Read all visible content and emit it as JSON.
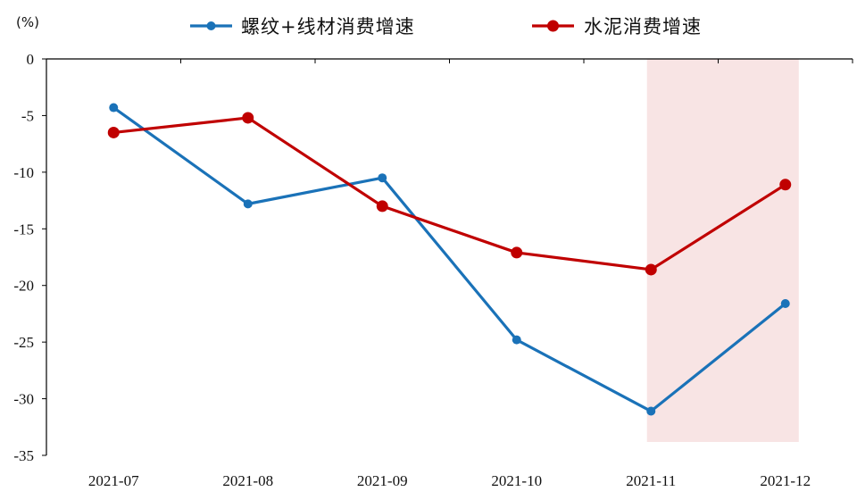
{
  "chart_data": {
    "type": "line",
    "y_unit_label": "(%)",
    "categories": [
      "2021-07",
      "2021-08",
      "2021-09",
      "2021-10",
      "2021-11",
      "2021-12"
    ],
    "ylim": [
      -35,
      0
    ],
    "y_ticks": [
      0,
      -5,
      -10,
      -15,
      -20,
      -25,
      -30,
      -35
    ],
    "y_tick_labels": [
      "0",
      "-5",
      "-10",
      "-15",
      "-20",
      "-25",
      "-30",
      "-35"
    ],
    "series": [
      {
        "name": "螺纹+线材消费增速",
        "color": "#1a72b8",
        "values": [
          -4.3,
          -12.8,
          -10.5,
          -24.8,
          -31.1,
          -21.6
        ]
      },
      {
        "name": "水泥消费增速",
        "color": "#c00000",
        "values": [
          -6.5,
          -5.2,
          -13.0,
          -17.1,
          -18.6,
          -11.1
        ]
      }
    ],
    "highlight": {
      "categories": [
        "2021-11",
        "2021-12"
      ],
      "color": "#f8e4e4"
    },
    "legend_position": "top",
    "grid": false
  }
}
